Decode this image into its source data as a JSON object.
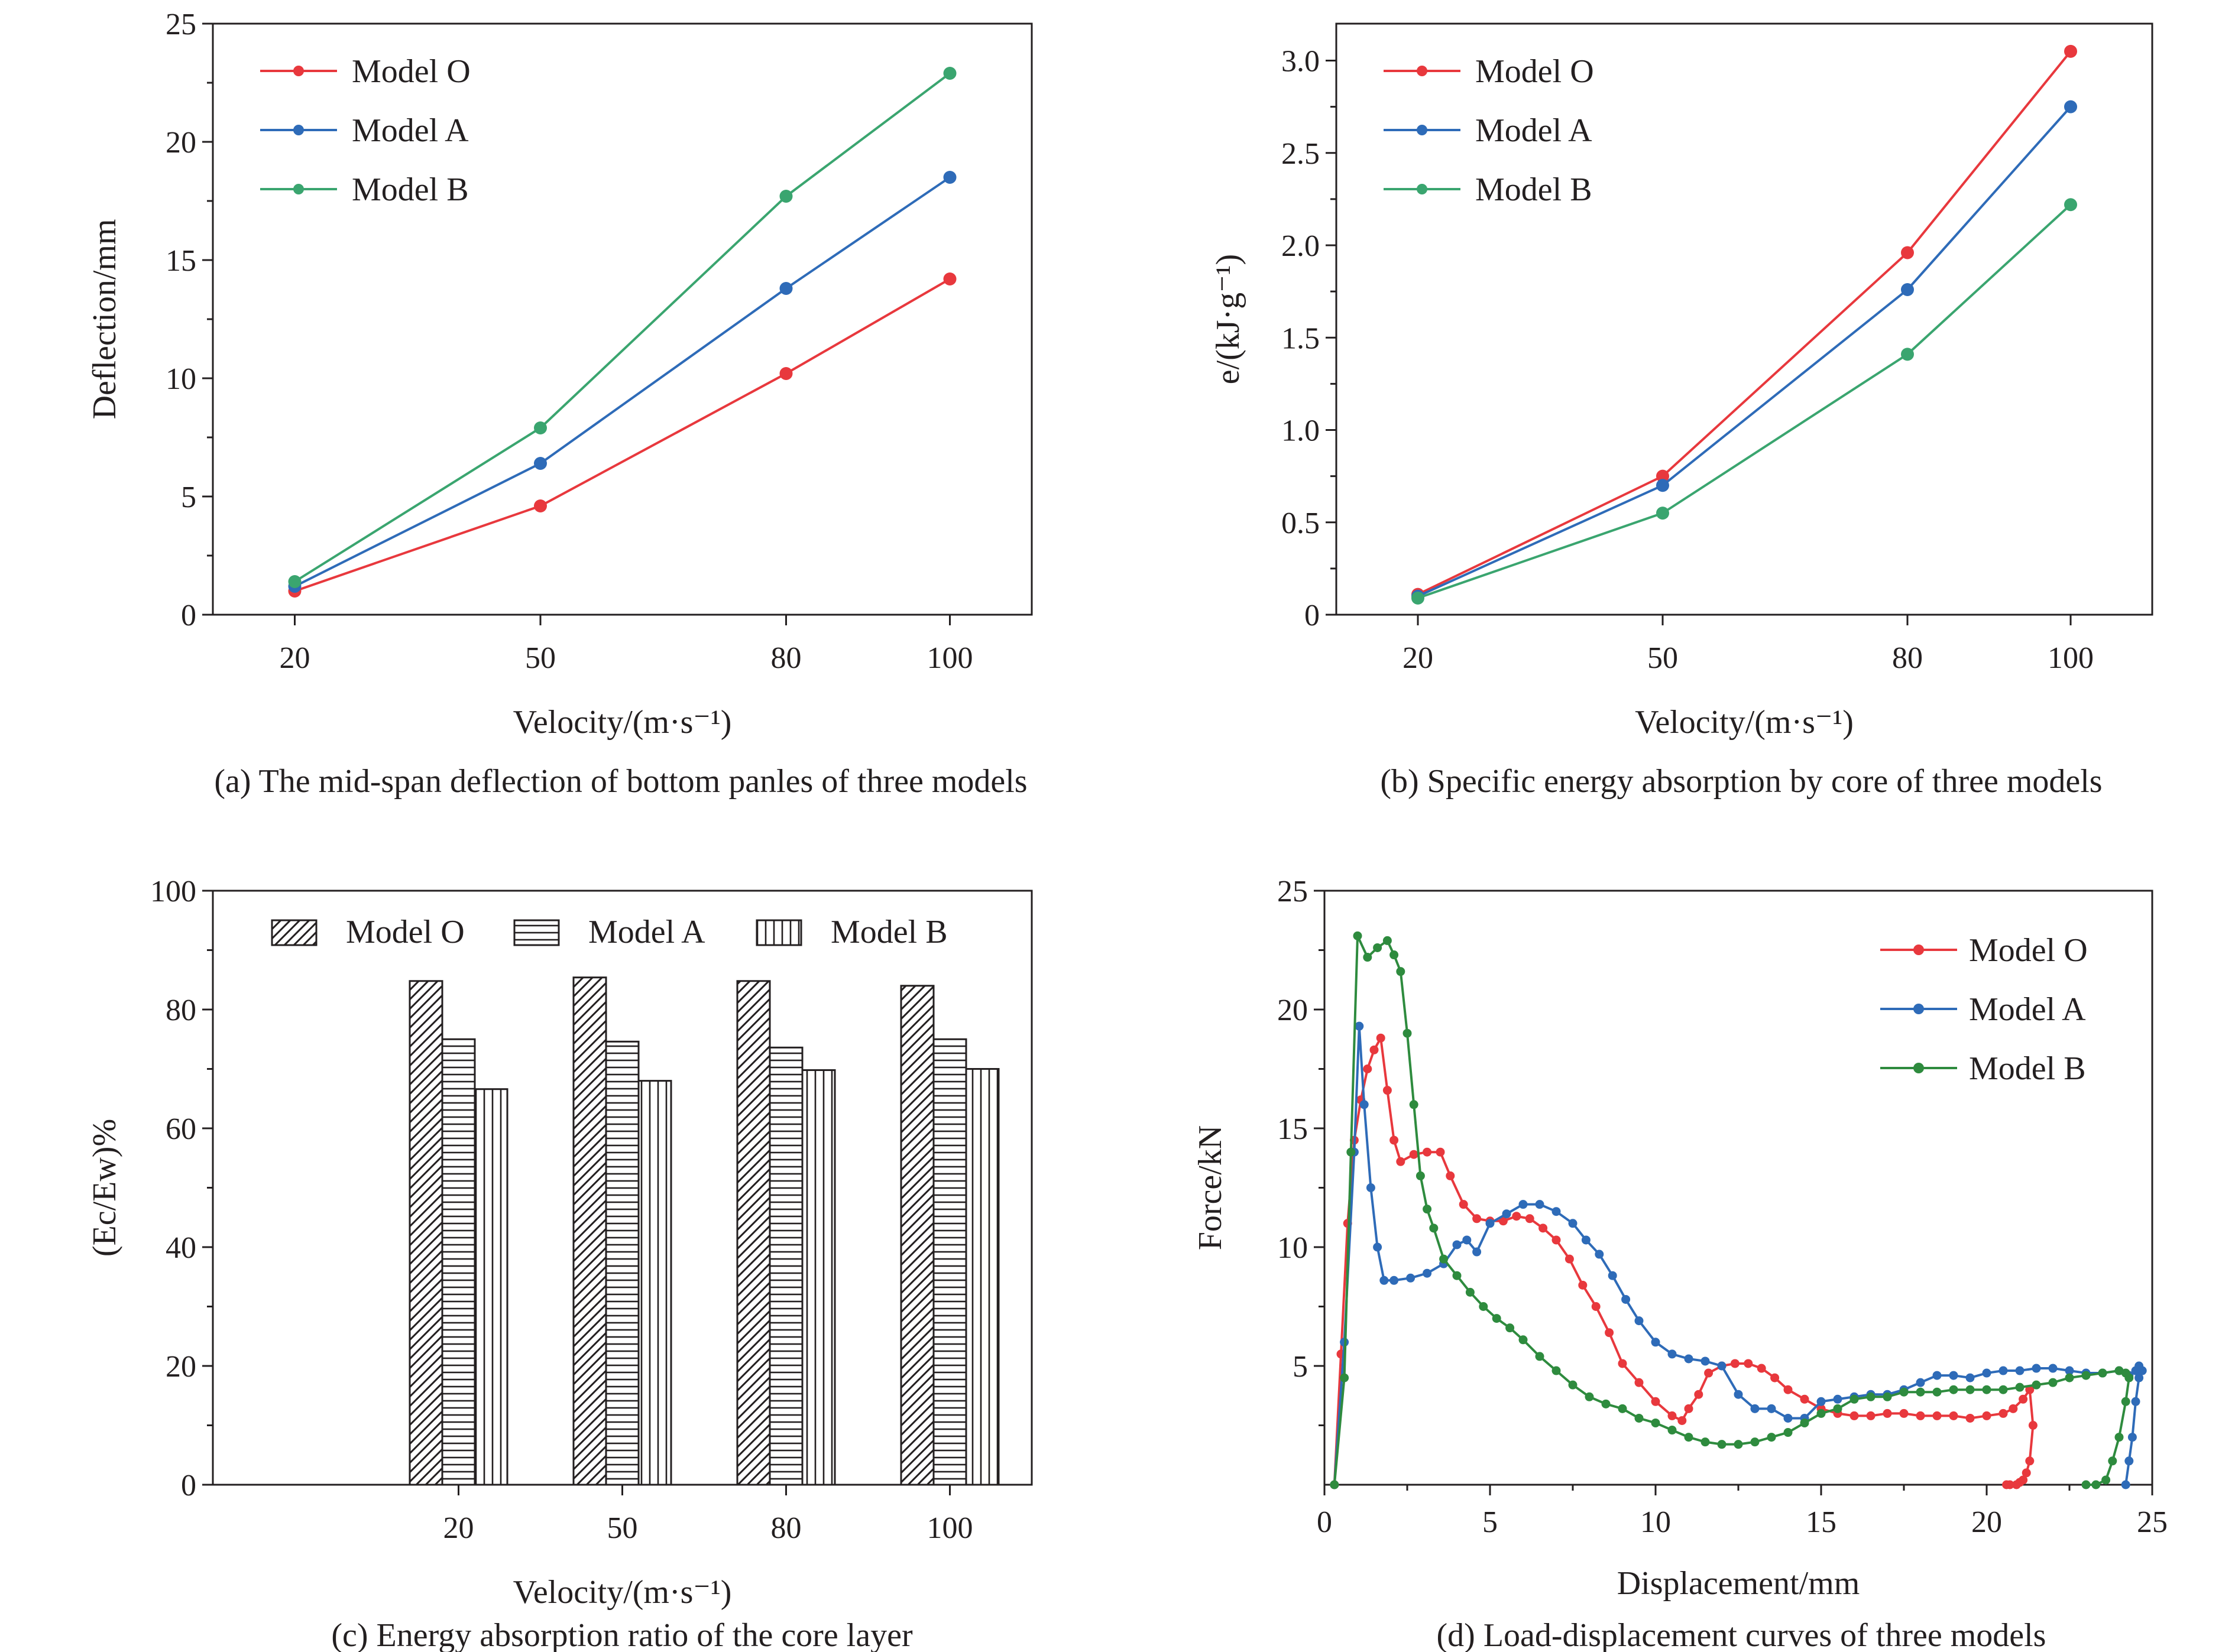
{
  "colors": {
    "red": "#e8383d",
    "blue": "#2e6bb8",
    "green": "#3aa56f",
    "darkgreen": "#2e8b3e",
    "axis": "#231f20"
  },
  "chart_data": [
    {
      "id": "a",
      "type": "line",
      "caption": "(a) The mid-span deflection of bottom panles of three models",
      "xlabel": "Velocity/(m·s⁻¹)",
      "ylabel": "Deflection/mm",
      "ylim": [
        0,
        25
      ],
      "yticks": [
        "0",
        "5",
        "10",
        "15",
        "20",
        "25"
      ],
      "categories": [
        "20",
        "50",
        "80",
        "100"
      ],
      "x": [
        20,
        50,
        80,
        100
      ],
      "xlim": [
        10,
        110
      ],
      "legend_position": "top-left",
      "series": [
        {
          "name": "Model O",
          "color": "#e8383d",
          "values": [
            1.0,
            4.6,
            10.2,
            14.2
          ]
        },
        {
          "name": "Model A",
          "color": "#2e6bb8",
          "values": [
            1.2,
            6.4,
            13.8,
            18.5
          ]
        },
        {
          "name": "Model B",
          "color": "#3aa56f",
          "values": [
            1.4,
            7.9,
            17.7,
            22.9
          ]
        }
      ]
    },
    {
      "id": "b",
      "type": "line",
      "caption": "(b) Specific energy absorption by core of three models",
      "xlabel": "Velocity/(m·s⁻¹)",
      "ylabel": "e/(kJ·g⁻¹)",
      "ylim": [
        0,
        3.2
      ],
      "yticks": [
        "0",
        "0.5",
        "1.0",
        "1.5",
        "2.0",
        "2.5",
        "3.0"
      ],
      "categories": [
        "20",
        "50",
        "80",
        "100"
      ],
      "x": [
        20,
        50,
        80,
        100
      ],
      "xlim": [
        10,
        110
      ],
      "legend_position": "top-left",
      "series": [
        {
          "name": "Model O",
          "color": "#e8383d",
          "values": [
            0.11,
            0.75,
            1.96,
            3.05
          ]
        },
        {
          "name": "Model A",
          "color": "#2e6bb8",
          "values": [
            0.1,
            0.7,
            1.76,
            2.75
          ]
        },
        {
          "name": "Model B",
          "color": "#3aa56f",
          "values": [
            0.09,
            0.55,
            1.41,
            2.22
          ]
        }
      ]
    },
    {
      "id": "c",
      "type": "bar",
      "caption": "(c) Energy absorption ratio of the core layer",
      "xlabel": "Velocity/(m·s⁻¹)",
      "ylabel": "(Ec/Ew)%",
      "ylim": [
        0,
        100
      ],
      "yticks": [
        "0",
        "20",
        "40",
        "60",
        "80",
        "100"
      ],
      "categories": [
        "20",
        "50",
        "80",
        "100"
      ],
      "legend_position": "top",
      "series": [
        {
          "name": "Model O",
          "pattern": "diagonal",
          "values": [
            84.8,
            85.4,
            84.8,
            84.0
          ]
        },
        {
          "name": "Model A",
          "pattern": "horizontal",
          "values": [
            75.0,
            74.6,
            73.6,
            75.0
          ]
        },
        {
          "name": "Model B",
          "pattern": "vertical",
          "values": [
            66.6,
            68.0,
            69.8,
            70.0
          ]
        }
      ]
    },
    {
      "id": "d",
      "type": "line",
      "caption": "(d) Load-displacement curves of three models",
      "xlabel": "Displacement/mm",
      "ylabel": "Force/kN",
      "xlim": [
        0,
        25
      ],
      "ylim": [
        0,
        25
      ],
      "xticks": [
        "0",
        "5",
        "10",
        "15",
        "20",
        "25"
      ],
      "yticks": [
        "5",
        "10",
        "15",
        "20",
        "25"
      ],
      "legend_position": "top-right",
      "series": [
        {
          "name": "Model O",
          "color": "#e8383d",
          "x": [
            0.3,
            0.5,
            0.7,
            0.9,
            1.1,
            1.3,
            1.5,
            1.7,
            1.9,
            2.1,
            2.3,
            2.7,
            3.1,
            3.5,
            3.8,
            4.2,
            4.6,
            5.0,
            5.4,
            5.8,
            6.2,
            6.6,
            7.0,
            7.4,
            7.8,
            8.2,
            8.6,
            9.0,
            9.5,
            10.0,
            10.5,
            10.8,
            11.0,
            11.3,
            11.6,
            12.0,
            12.4,
            12.8,
            13.2,
            13.6,
            14.0,
            14.5,
            15.0,
            15.5,
            16.0,
            16.5,
            17.0,
            17.5,
            18.0,
            18.5,
            19.0,
            19.5,
            20.0,
            20.5,
            20.8,
            21.1,
            21.3,
            21.4,
            21.3,
            21.2,
            21.1,
            21.0,
            20.9,
            20.7,
            20.6
          ],
          "y": [
            0,
            5.5,
            11.0,
            14.5,
            16.2,
            17.5,
            18.3,
            18.8,
            16.6,
            14.5,
            13.6,
            13.9,
            14.0,
            14.0,
            13.0,
            11.8,
            11.2,
            11.1,
            11.1,
            11.3,
            11.2,
            10.8,
            10.3,
            9.5,
            8.4,
            7.5,
            6.4,
            5.1,
            4.3,
            3.5,
            2.9,
            2.7,
            3.2,
            3.8,
            4.7,
            5.0,
            5.1,
            5.1,
            4.9,
            4.5,
            4.0,
            3.6,
            3.2,
            3.0,
            2.9,
            2.9,
            3.0,
            3.0,
            2.9,
            2.9,
            2.9,
            2.8,
            2.9,
            3.0,
            3.2,
            3.6,
            4.0,
            2.5,
            1.0,
            0.5,
            0.2,
            0.1,
            0.0,
            0.0,
            0.0
          ]
        },
        {
          "name": "Model A",
          "color": "#2e6bb8",
          "x": [
            0.3,
            0.6,
            0.9,
            1.05,
            1.2,
            1.4,
            1.6,
            1.8,
            2.1,
            2.6,
            3.1,
            3.6,
            4.0,
            4.3,
            4.6,
            5.0,
            5.5,
            6.0,
            6.5,
            7.0,
            7.5,
            7.9,
            8.3,
            8.7,
            9.1,
            9.5,
            10.0,
            10.5,
            11.0,
            11.5,
            12.0,
            12.5,
            13.0,
            13.5,
            14.0,
            14.5,
            15.0,
            15.5,
            16.0,
            16.5,
            17.0,
            17.5,
            18.0,
            18.5,
            19.0,
            19.5,
            20.0,
            20.5,
            21.0,
            21.5,
            22.0,
            22.5,
            23.0,
            23.5,
            24.0,
            24.3,
            24.5,
            24.6,
            24.7,
            24.6,
            24.5,
            24.4,
            24.3,
            24.2
          ],
          "y": [
            0,
            6.0,
            14.0,
            19.3,
            16.0,
            12.5,
            10.0,
            8.6,
            8.6,
            8.7,
            8.9,
            9.3,
            10.1,
            10.3,
            9.8,
            11.0,
            11.4,
            11.8,
            11.8,
            11.5,
            11.0,
            10.3,
            9.7,
            8.8,
            7.8,
            6.9,
            6.0,
            5.5,
            5.3,
            5.2,
            5.0,
            3.8,
            3.2,
            3.2,
            2.8,
            2.8,
            3.5,
            3.6,
            3.7,
            3.8,
            3.8,
            4.0,
            4.3,
            4.6,
            4.6,
            4.5,
            4.7,
            4.8,
            4.8,
            4.9,
            4.9,
            4.8,
            4.7,
            4.7,
            4.8,
            4.6,
            4.8,
            5.0,
            4.8,
            4.5,
            3.5,
            2.0,
            1.0,
            0.0
          ]
        },
        {
          "name": "Model B",
          "color": "#2e8b3e",
          "x": [
            0.3,
            0.6,
            0.8,
            1.0,
            1.3,
            1.6,
            1.9,
            2.1,
            2.3,
            2.5,
            2.7,
            2.9,
            3.1,
            3.3,
            3.6,
            4.0,
            4.4,
            4.8,
            5.2,
            5.6,
            6.0,
            6.5,
            7.0,
            7.5,
            8.0,
            8.5,
            9.0,
            9.5,
            10.0,
            10.5,
            11.0,
            11.5,
            12.0,
            12.5,
            13.0,
            13.5,
            14.0,
            14.5,
            15.0,
            15.5,
            16.0,
            16.5,
            17.0,
            17.5,
            18.0,
            18.5,
            19.0,
            19.5,
            20.0,
            20.5,
            21.0,
            21.5,
            22.0,
            22.5,
            23.0,
            23.5,
            24.0,
            24.2,
            24.3,
            24.2,
            24.0,
            23.8,
            23.6,
            23.3,
            23.0
          ],
          "y": [
            0,
            4.5,
            14.0,
            23.1,
            22.2,
            22.6,
            22.9,
            22.3,
            21.6,
            19.0,
            16.0,
            13.0,
            11.6,
            10.8,
            9.5,
            8.8,
            8.1,
            7.5,
            7.0,
            6.6,
            6.1,
            5.4,
            4.8,
            4.2,
            3.7,
            3.4,
            3.2,
            2.8,
            2.6,
            2.3,
            2.0,
            1.8,
            1.7,
            1.7,
            1.8,
            2.0,
            2.2,
            2.6,
            3.0,
            3.2,
            3.6,
            3.7,
            3.7,
            3.9,
            3.9,
            3.9,
            4.0,
            4.0,
            4.0,
            4.0,
            4.1,
            4.2,
            4.3,
            4.5,
            4.6,
            4.7,
            4.8,
            4.7,
            4.5,
            3.5,
            2.0,
            1.0,
            0.2,
            0.0,
            0.0
          ]
        }
      ]
    }
  ]
}
